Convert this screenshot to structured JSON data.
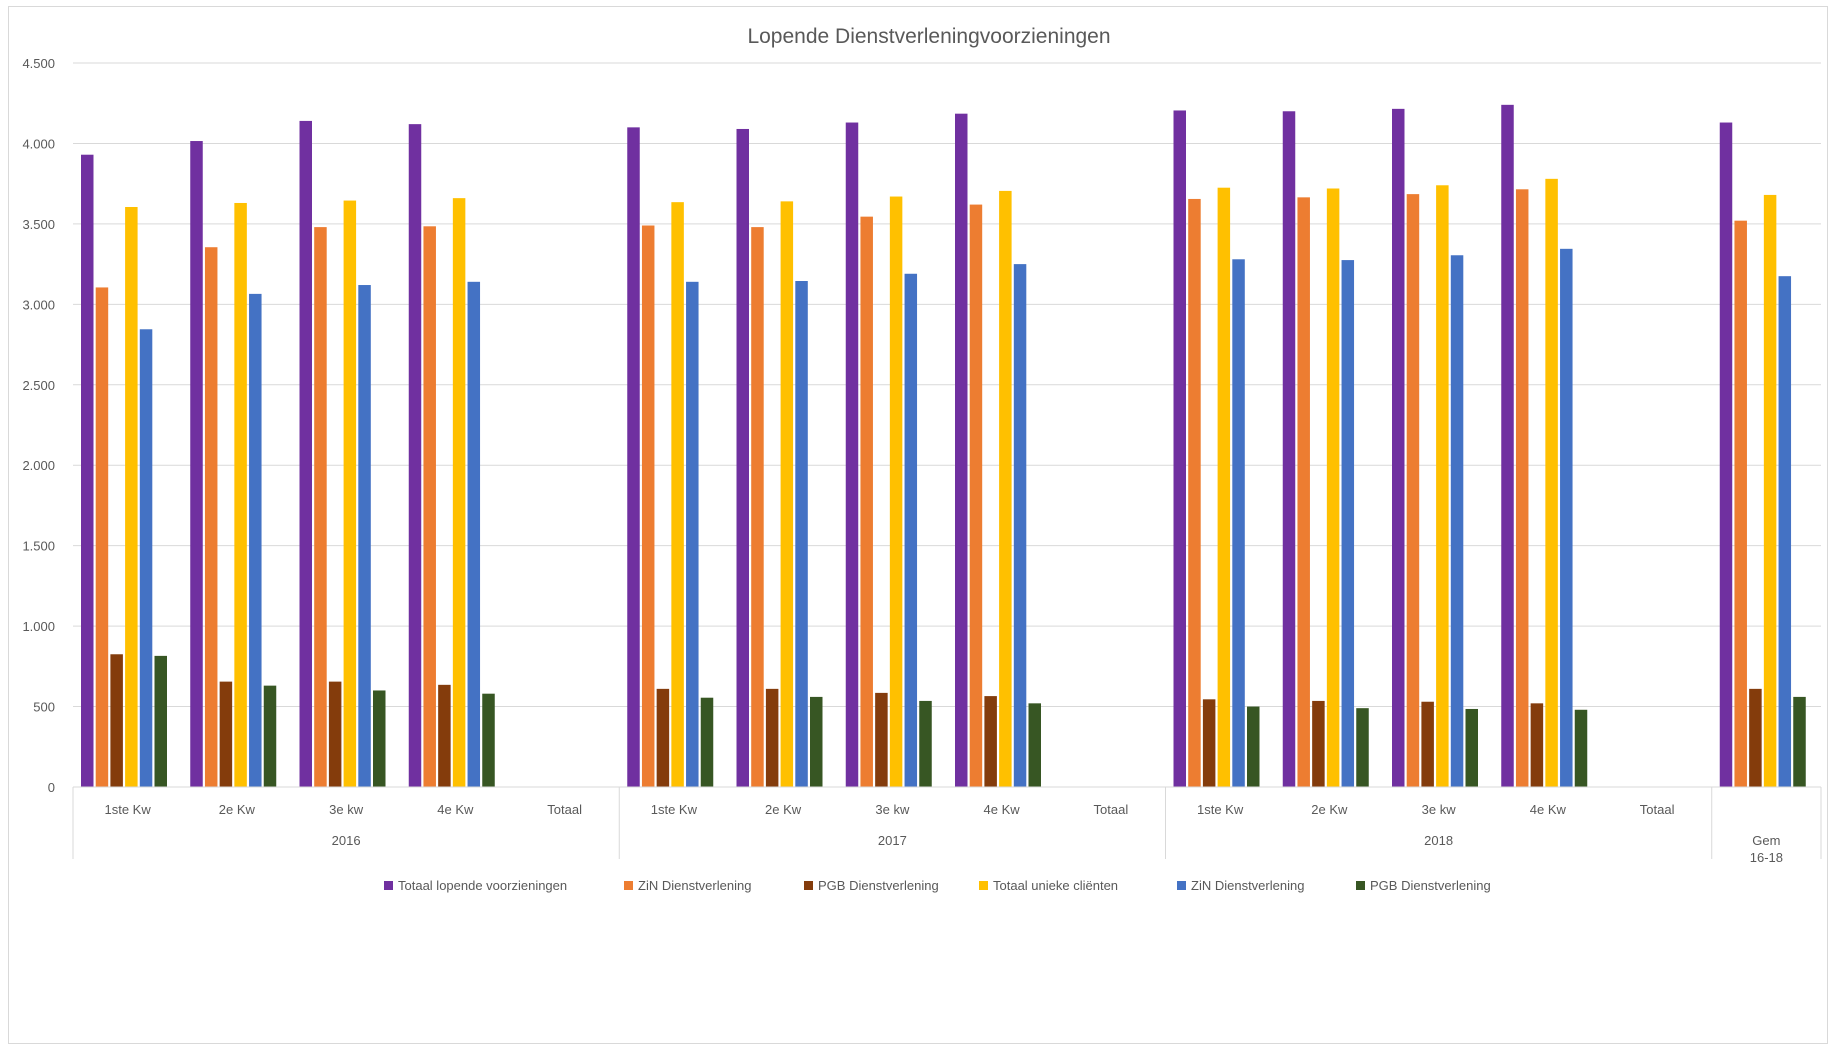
{
  "chart_data": {
    "type": "bar",
    "title": "Lopende Dienstverleningvoorzieningen",
    "xlabel": "",
    "ylabel": "",
    "ylim": [
      0,
      4500
    ],
    "yticks": [
      0,
      500,
      1000,
      1500,
      2000,
      2500,
      3000,
      3500,
      4000,
      4500
    ],
    "ytick_labels": [
      "0",
      "500",
      "1.000",
      "1.500",
      "2.000",
      "2.500",
      "3.000",
      "3.500",
      "4.000",
      "4.500"
    ],
    "grid": true,
    "legend_position": "bottom",
    "groups": [
      {
        "label": "2016",
        "categories": [
          "1ste Kw",
          "2e Kw",
          "3e kw",
          "4e Kw",
          "Totaal"
        ]
      },
      {
        "label": "2017",
        "categories": [
          "1ste Kw",
          "2e Kw",
          "3e kw",
          "4e Kw",
          "Totaal"
        ]
      },
      {
        "label": "2018",
        "categories": [
          "1ste Kw",
          "2e Kw",
          "3e kw",
          "4e Kw",
          "Totaal"
        ]
      },
      {
        "label": "",
        "categories": [
          "Gem 16-18"
        ]
      }
    ],
    "series": [
      {
        "name": "Totaal lopende voorzieningen",
        "color": "#7030a0",
        "values": [
          3930,
          4015,
          4140,
          4120,
          null,
          4100,
          4090,
          4130,
          4185,
          null,
          4205,
          4200,
          4215,
          4240,
          null,
          4130
        ]
      },
      {
        "name": "ZiN Dienstverlening",
        "color": "#ed7d31",
        "values": [
          3105,
          3355,
          3480,
          3485,
          null,
          3490,
          3480,
          3545,
          3620,
          null,
          3655,
          3665,
          3685,
          3715,
          null,
          3520
        ]
      },
      {
        "name": "PGB Dienstverlening",
        "color": "#843c0c",
        "values": [
          825,
          655,
          655,
          635,
          null,
          610,
          610,
          585,
          565,
          null,
          545,
          535,
          530,
          520,
          null,
          610
        ]
      },
      {
        "name": "Totaal unieke cliënten",
        "color": "#ffc000",
        "values": [
          3605,
          3630,
          3645,
          3660,
          null,
          3635,
          3640,
          3670,
          3705,
          null,
          3725,
          3720,
          3740,
          3780,
          null,
          3680
        ]
      },
      {
        "name": "ZiN Dienstverlening",
        "color": "#4472c4",
        "values": [
          2845,
          3065,
          3120,
          3140,
          null,
          3140,
          3145,
          3190,
          3250,
          null,
          3280,
          3275,
          3305,
          3345,
          null,
          3175
        ]
      },
      {
        "name": "PGB Dienstverlening",
        "color": "#375623",
        "values": [
          815,
          630,
          600,
          580,
          null,
          555,
          560,
          535,
          520,
          null,
          500,
          490,
          485,
          480,
          null,
          560
        ]
      }
    ]
  }
}
